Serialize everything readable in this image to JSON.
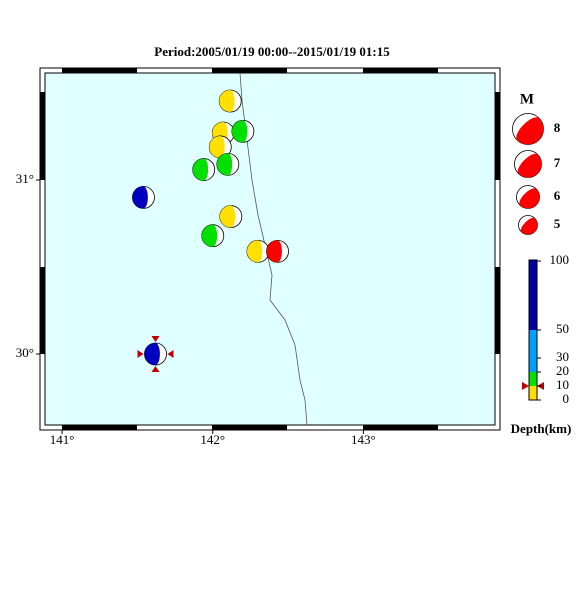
{
  "title": "Period:2005/01/19 00:00--2015/01/19 01:15",
  "map": {
    "xlim": [
      140.86,
      143.9
    ],
    "ylim": [
      29.592,
      31.615
    ],
    "xticks": [
      {
        "value": 141,
        "label": "141°"
      },
      {
        "value": 142,
        "label": "142°"
      },
      {
        "value": 143,
        "label": "143°"
      }
    ],
    "yticks": [
      {
        "value": 30,
        "label": "30°"
      },
      {
        "value": 31,
        "label": "31°"
      }
    ]
  },
  "events": [
    {
      "lon": 142.116,
      "lat": 31.454,
      "color": "#ffe000"
    },
    {
      "lon": 142.07,
      "lat": 31.27,
      "color": "#ffe000"
    },
    {
      "lon": 142.2,
      "lat": 31.28,
      "color": "#00e000"
    },
    {
      "lon": 142.05,
      "lat": 31.19,
      "color": "#ffe000"
    },
    {
      "lon": 142.1,
      "lat": 31.09,
      "color": "#00e000"
    },
    {
      "lon": 141.94,
      "lat": 31.06,
      "color": "#00e000"
    },
    {
      "lon": 141.54,
      "lat": 30.9,
      "color": "#0000c0"
    },
    {
      "lon": 142.12,
      "lat": 30.79,
      "color": "#ffe000"
    },
    {
      "lon": 142.0,
      "lat": 30.68,
      "color": "#00e000"
    },
    {
      "lon": 142.3,
      "lat": 30.59,
      "color": "#ffe000"
    },
    {
      "lon": 142.43,
      "lat": 30.59,
      "color": "#ff0000"
    },
    {
      "lon": 141.62,
      "lat": 30.0,
      "color": "#0000c0"
    }
  ],
  "legend": {
    "title": "M",
    "magnitudes": [
      8,
      7,
      6,
      5
    ]
  },
  "depth_scale": {
    "ticks": [
      100,
      50,
      30,
      20,
      10,
      0
    ],
    "label": "Depth(km)"
  }
}
